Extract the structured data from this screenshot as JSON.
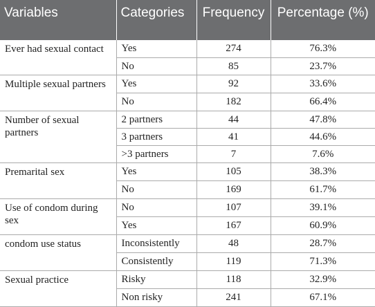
{
  "table": {
    "headers": {
      "variables": "Variables",
      "categories": "Categories",
      "frequency": "Frequency",
      "percentage": "Percentage (%)"
    },
    "groups": [
      {
        "variable": "Ever had sexual contact",
        "rows": [
          {
            "category": "Yes",
            "frequency": "274",
            "percentage": "76.3%"
          },
          {
            "category": "No",
            "frequency": "85",
            "percentage": "23.7%"
          }
        ]
      },
      {
        "variable": "Multiple sexual partners",
        "rows": [
          {
            "category": "Yes",
            "frequency": "92",
            "percentage": "33.6%"
          },
          {
            "category": "No",
            "frequency": "182",
            "percentage": "66.4%"
          }
        ]
      },
      {
        "variable": "Number of sexual partners",
        "rows": [
          {
            "category": "2 partners",
            "frequency": "44",
            "percentage": "47.8%"
          },
          {
            "category": "3 partners",
            "frequency": "41",
            "percentage": "44.6%"
          },
          {
            "category": ">3 partners",
            "frequency": "7",
            "percentage": "7.6%"
          }
        ]
      },
      {
        "variable": "Premarital sex",
        "rows": [
          {
            "category": "Yes",
            "frequency": "105",
            "percentage": "38.3%"
          },
          {
            "category": "No",
            "frequency": "169",
            "percentage": "61.7%"
          }
        ]
      },
      {
        "variable": "Use of condom during sex",
        "rows": [
          {
            "category": "No",
            "frequency": "107",
            "percentage": "39.1%"
          },
          {
            "category": "Yes",
            "frequency": "167",
            "percentage": "60.9%"
          }
        ]
      },
      {
        "variable": "condom use status",
        "rows": [
          {
            "category": "Inconsistently",
            "frequency": "48",
            "percentage": "28.7%"
          },
          {
            "category": "Consistently",
            "frequency": "119",
            "percentage": "71.3%"
          }
        ]
      },
      {
        "variable": "Sexual practice",
        "rows": [
          {
            "category": "Risky",
            "frequency": "118",
            "percentage": "32.9%"
          },
          {
            "category": "Non risky",
            "frequency": "241",
            "percentage": "67.1%"
          }
        ]
      }
    ]
  }
}
